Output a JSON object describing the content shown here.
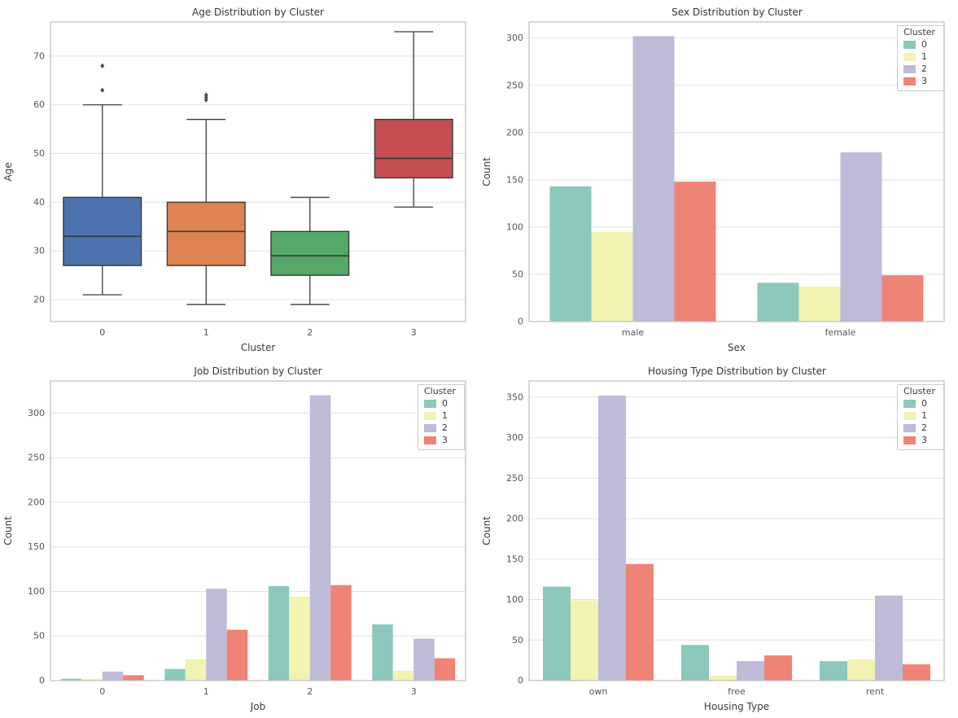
{
  "page": {
    "background": "#ffffff"
  },
  "palette": {
    "box": [
      "#4c72b0",
      "#dd8452",
      "#55a868",
      "#c44e52"
    ],
    "bar": [
      "#8cc8bc",
      "#f2f2b3",
      "#bdbbd7",
      "#ef8375"
    ],
    "grid": "#e2e2e2",
    "spine": "#bfbfbf",
    "tick_text": "#555555",
    "label_text": "#3a3a3a",
    "box_edge": "#3b3b3b"
  },
  "legend": {
    "title": "Cluster",
    "labels": [
      "0",
      "1",
      "2",
      "3"
    ]
  },
  "chart_data": [
    {
      "type": "box",
      "title": "Age Distribution by Cluster",
      "xlabel": "Cluster",
      "ylabel": "Age",
      "categories": [
        "0",
        "1",
        "2",
        "3"
      ],
      "ylim": [
        15.5,
        77
      ],
      "yticks": [
        20,
        30,
        40,
        50,
        60,
        70
      ],
      "grid": true,
      "boxes": [
        {
          "whislo": 21,
          "q1": 27,
          "med": 33,
          "q3": 41,
          "whishi": 60,
          "fliers": [
            63,
            68
          ]
        },
        {
          "whislo": 19,
          "q1": 27,
          "med": 34,
          "q3": 40,
          "whishi": 57,
          "fliers": [
            61,
            61.5,
            62
          ]
        },
        {
          "whislo": 19,
          "q1": 25,
          "med": 29,
          "q3": 34,
          "whishi": 41,
          "fliers": []
        },
        {
          "whislo": 39,
          "q1": 45,
          "med": 49,
          "q3": 57,
          "whishi": 75,
          "fliers": []
        }
      ]
    },
    {
      "type": "bar",
      "title": "Sex Distribution by Cluster",
      "xlabel": "Sex",
      "ylabel": "Count",
      "categories": [
        "male",
        "female"
      ],
      "ylim": [
        0,
        317
      ],
      "yticks": [
        0,
        50,
        100,
        150,
        200,
        250,
        300
      ],
      "grid": true,
      "legend_title": "Cluster",
      "legend_position": "top-right",
      "series": [
        {
          "name": "0",
          "values": [
            143,
            41
          ]
        },
        {
          "name": "1",
          "values": [
            95,
            37
          ]
        },
        {
          "name": "2",
          "values": [
            302,
            179
          ]
        },
        {
          "name": "3",
          "values": [
            148,
            49
          ]
        }
      ]
    },
    {
      "type": "bar",
      "title": "Job Distribution by Cluster",
      "xlabel": "Job",
      "ylabel": "Count",
      "categories": [
        "0",
        "1",
        "2",
        "3"
      ],
      "ylim": [
        0,
        336
      ],
      "yticks": [
        0,
        50,
        100,
        150,
        200,
        250,
        300
      ],
      "grid": true,
      "legend_title": "Cluster",
      "legend_position": "top-right",
      "series": [
        {
          "name": "0",
          "values": [
            2,
            13,
            106,
            63
          ]
        },
        {
          "name": "1",
          "values": [
            2,
            24,
            94,
            11
          ]
        },
        {
          "name": "2",
          "values": [
            10,
            103,
            320,
            47
          ]
        },
        {
          "name": "3",
          "values": [
            6,
            57,
            107,
            25
          ]
        }
      ]
    },
    {
      "type": "bar",
      "title": "Housing Type Distribution by Cluster",
      "xlabel": "Housing Type",
      "ylabel": "Count",
      "categories": [
        "own",
        "free",
        "rent"
      ],
      "ylim": [
        0,
        370
      ],
      "yticks": [
        0,
        50,
        100,
        150,
        200,
        250,
        300,
        350
      ],
      "grid": true,
      "legend_title": "Cluster",
      "legend_position": "top-right",
      "series": [
        {
          "name": "0",
          "values": [
            116,
            44,
            24
          ]
        },
        {
          "name": "1",
          "values": [
            99,
            6,
            26
          ]
        },
        {
          "name": "2",
          "values": [
            352,
            24,
            105
          ]
        },
        {
          "name": "3",
          "values": [
            144,
            31,
            20
          ]
        }
      ]
    }
  ]
}
